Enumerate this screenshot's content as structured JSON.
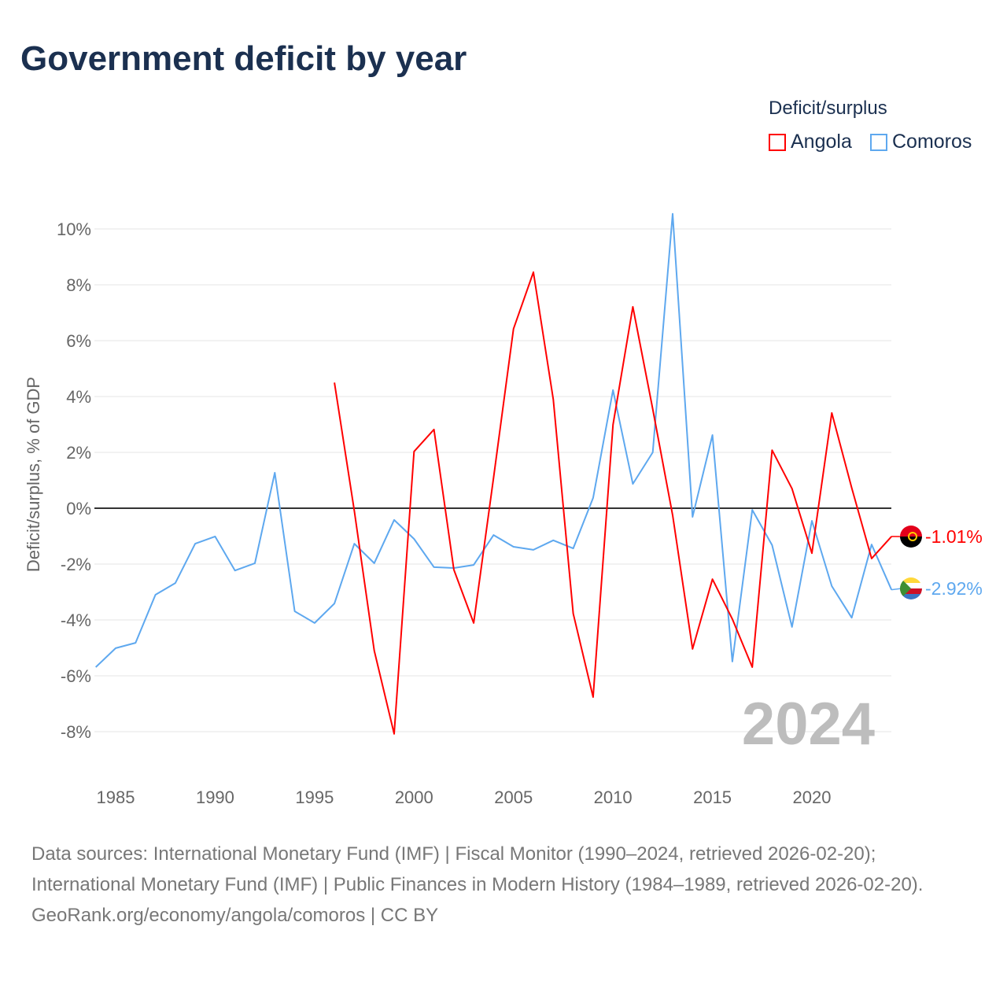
{
  "chart_data": {
    "type": "line",
    "title": "Government deficit by year",
    "xlabel": "",
    "ylabel": "Deficit/surplus, % of GDP",
    "xlim": [
      1984,
      2024
    ],
    "ylim": [
      -9,
      11
    ],
    "x_ticks": [
      1985,
      1990,
      1995,
      2000,
      2005,
      2010,
      2015,
      2020
    ],
    "y_ticks": [
      -8,
      -6,
      -4,
      -2,
      0,
      2,
      4,
      6,
      8,
      10
    ],
    "y_tick_labels": [
      "-8%",
      "-6%",
      "-4%",
      "-2%",
      "0%",
      "2%",
      "4%",
      "6%",
      "8%",
      "10%"
    ],
    "grid": true,
    "legend_title": "Deficit/surplus",
    "legend_position": "top-right",
    "year_watermark": "2024",
    "series": [
      {
        "name": "Angola",
        "color": "#ff0000",
        "start_year": 1996,
        "values": [
          4.5,
          -0.1,
          -5.1,
          -8.08,
          2.03,
          2.82,
          -2.2,
          -4.11,
          1.1,
          6.42,
          8.45,
          3.89,
          -3.77,
          -6.76,
          2.99,
          7.21,
          3.55,
          -0.25,
          -5.04,
          -2.54,
          -3.97,
          -5.69,
          2.08,
          0.7,
          -1.61,
          3.41,
          0.73,
          -1.8,
          -1.01
        ],
        "end_label": "-1.01%"
      },
      {
        "name": "Comoros",
        "color": "#5ea8ef",
        "start_year": 1984,
        "values": [
          -5.69,
          -5.01,
          -4.82,
          -3.1,
          -2.68,
          -1.27,
          -1.01,
          -2.23,
          -1.97,
          1.27,
          -3.69,
          -4.11,
          -3.41,
          -1.27,
          -1.97,
          -0.42,
          -1.1,
          -2.11,
          -2.14,
          -2.03,
          -0.96,
          -1.38,
          -1.49,
          -1.15,
          -1.44,
          0.37,
          4.23,
          0.87,
          2.0,
          10.54,
          -0.31,
          2.62,
          -5.49,
          -0.06,
          -1.32,
          -4.25,
          -0.45,
          -2.79,
          -3.92,
          -1.3,
          -2.92
        ],
        "end_label": "-2.92%"
      }
    ]
  },
  "footer": {
    "sources": "Data sources: International Monetary Fund (IMF) | Fiscal Monitor (1990–2024, retrieved 2026-02-20); International Monetary Fund (IMF) | Public Finances in Modern History (1984–1989, retrieved 2026-02-20).",
    "credit": "GeoRank.org/economy/angola/comoros | CC BY"
  }
}
